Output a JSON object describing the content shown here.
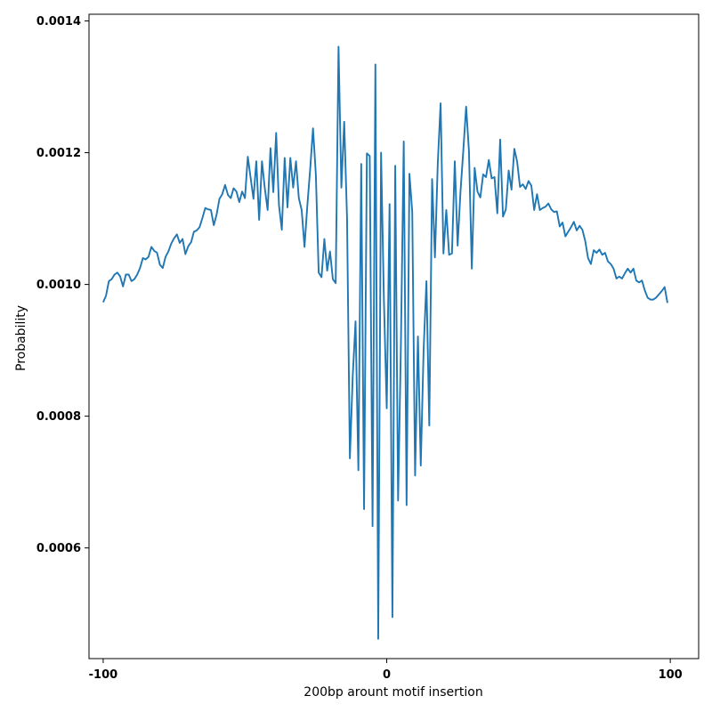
{
  "chart_data": {
    "type": "line",
    "title": "",
    "xlabel": "200bp arount motif insertion",
    "ylabel": "Probability",
    "xlim": [
      -105,
      110
    ],
    "ylim": [
      0.000432,
      0.0014102
    ],
    "x_ticks": [
      {
        "value": -100,
        "label": "-100"
      },
      {
        "value": 0,
        "label": "0"
      },
      {
        "value": 100,
        "label": "100"
      }
    ],
    "y_ticks": [
      {
        "value": 0.0006,
        "label": "0.0006"
      },
      {
        "value": 0.0008,
        "label": "0.0008"
      },
      {
        "value": 0.001,
        "label": "0.0010"
      },
      {
        "value": 0.0012,
        "label": "0.0012"
      },
      {
        "value": 0.0014,
        "label": "0.0014"
      }
    ],
    "grid": false,
    "legend": false,
    "line_color": "#1f77b4",
    "series": [
      {
        "x": [
          -100,
          -99,
          -98,
          -97,
          -96,
          -95,
          -94,
          -93,
          -92,
          -91,
          -90,
          -89,
          -88,
          -87,
          -86,
          -85,
          -84,
          -83,
          -82,
          -81,
          -80,
          -79,
          -78,
          -77,
          -76,
          -75,
          -74,
          -73,
          -72,
          -71,
          -70,
          -69,
          -68,
          -67,
          -66,
          -65,
          -64,
          -63,
          -62,
          -61,
          -60,
          -59,
          -58,
          -57,
          -56,
          -55,
          -54,
          -53,
          -52,
          -51,
          -50,
          -49,
          -48,
          -47,
          -46,
          -45,
          -44,
          -43,
          -42,
          -41,
          -40,
          -39,
          -38,
          -37,
          -36,
          -35,
          -34,
          -33,
          -32,
          -31,
          -30,
          -29,
          -28,
          -27,
          -26,
          -25,
          -24,
          -23,
          -22,
          -21,
          -20,
          -19,
          -18,
          -17,
          -16,
          -15,
          -14,
          -13,
          -12,
          -11,
          -10,
          -9,
          -8,
          -7,
          -6,
          -5,
          -4,
          -3,
          -2,
          -1,
          0,
          1,
          2,
          3,
          4,
          5,
          6,
          7,
          8,
          9,
          10,
          11,
          12,
          13,
          14,
          15,
          16,
          17,
          18,
          19,
          20,
          21,
          22,
          23,
          24,
          25,
          26,
          27,
          28,
          29,
          30,
          31,
          32,
          33,
          34,
          35,
          36,
          37,
          38,
          39,
          40,
          41,
          42,
          43,
          44,
          45,
          46,
          47,
          48,
          49,
          50,
          51,
          52,
          53,
          54,
          55,
          56,
          57,
          58,
          59,
          60,
          61,
          62,
          63,
          64,
          65,
          66,
          67,
          68,
          69,
          70,
          71,
          72,
          73,
          74,
          75,
          76,
          77,
          78,
          79,
          80,
          81,
          82,
          83,
          84,
          85,
          86,
          87,
          88,
          89,
          90,
          91,
          92,
          93,
          94,
          95,
          96,
          97,
          98,
          99
        ],
        "y": [
          0.000973,
          0.000983,
          0.001005,
          0.001008,
          0.001015,
          0.001018,
          0.001012,
          0.000997,
          0.001015,
          0.001015,
          0.001005,
          0.001008,
          0.001015,
          0.001025,
          0.00104,
          0.001038,
          0.001042,
          0.001057,
          0.001051,
          0.001048,
          0.00103,
          0.001025,
          0.001042,
          0.00105,
          0.001062,
          0.00107,
          0.001076,
          0.001063,
          0.001069,
          0.001046,
          0.001058,
          0.001064,
          0.00108,
          0.001082,
          0.001087,
          0.001101,
          0.001116,
          0.001114,
          0.001113,
          0.00109,
          0.001106,
          0.00113,
          0.001137,
          0.001151,
          0.001136,
          0.001131,
          0.001146,
          0.001141,
          0.001125,
          0.001141,
          0.001131,
          0.001194,
          0.001162,
          0.00113,
          0.001187,
          0.001098,
          0.001187,
          0.001146,
          0.001113,
          0.001207,
          0.00114,
          0.00123,
          0.00112,
          0.001083,
          0.001192,
          0.001117,
          0.001192,
          0.001147,
          0.001187,
          0.001131,
          0.001113,
          0.001057,
          0.00112,
          0.001175,
          0.001237,
          0.001167,
          0.001018,
          0.001011,
          0.001069,
          0.001021,
          0.00105,
          0.001008,
          0.001002,
          0.001361,
          0.001147,
          0.001247,
          0.001101,
          0.000736,
          0.00086,
          0.000944,
          0.000718,
          0.001183,
          0.000659,
          0.001199,
          0.001195,
          0.000633,
          0.001334,
          0.000462,
          0.0012,
          0.000977,
          0.000812,
          0.001122,
          0.000495,
          0.00118,
          0.000672,
          0.00091,
          0.001217,
          0.000665,
          0.001168,
          0.00111,
          0.00071,
          0.000921,
          0.000725,
          0.0009,
          0.001005,
          0.000786,
          0.00116,
          0.001041,
          0.001184,
          0.001275,
          0.001047,
          0.001113,
          0.001045,
          0.001047,
          0.001187,
          0.001059,
          0.00114,
          0.001203,
          0.00127,
          0.001202,
          0.001024,
          0.001177,
          0.001141,
          0.001132,
          0.001167,
          0.001163,
          0.001189,
          0.001161,
          0.001163,
          0.001108,
          0.00122,
          0.001103,
          0.001114,
          0.001173,
          0.001144,
          0.001206,
          0.001186,
          0.001148,
          0.001152,
          0.001145,
          0.001157,
          0.00115,
          0.001113,
          0.001137,
          0.001113,
          0.001116,
          0.001118,
          0.001123,
          0.001114,
          0.00111,
          0.001111,
          0.001088,
          0.001094,
          0.001073,
          0.00108,
          0.001087,
          0.001095,
          0.001082,
          0.001089,
          0.001083,
          0.001066,
          0.00104,
          0.001031,
          0.001052,
          0.001048,
          0.001053,
          0.001045,
          0.001048,
          0.001035,
          0.001031,
          0.001024,
          0.001009,
          0.001012,
          0.001009,
          0.001017,
          0.001024,
          0.001018,
          0.001024,
          0.001006,
          0.001003,
          0.001006,
          0.000991,
          0.00098,
          0.000977,
          0.000977,
          0.00098,
          0.000985,
          0.00099,
          0.000996,
          0.000972
        ]
      }
    ]
  }
}
